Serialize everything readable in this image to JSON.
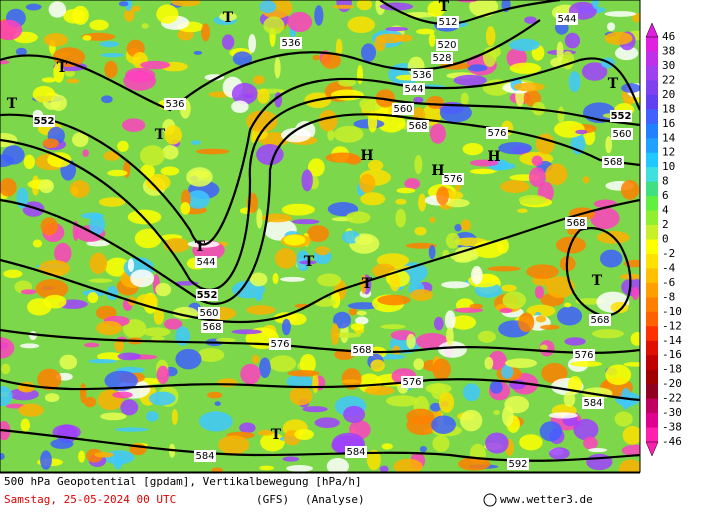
{
  "map": {
    "contour_labels": [
      512,
      544,
      520,
      536,
      528,
      536,
      544,
      536,
      552,
      552,
      560,
      560,
      568,
      576,
      568,
      576,
      544,
      552,
      560,
      568,
      568,
      568,
      576,
      568,
      576,
      576,
      584,
      584,
      584,
      592
    ],
    "pressure_centers": [
      "T",
      "T",
      "T",
      "T",
      "T",
      "T",
      "T",
      "T",
      "T",
      "T",
      "T",
      "H",
      "H",
      "H"
    ]
  },
  "colorbar": {
    "labels": [
      46,
      38,
      30,
      22,
      20,
      18,
      16,
      14,
      12,
      10,
      8,
      6,
      4,
      2,
      0,
      -2,
      -4,
      -6,
      -8,
      -10,
      -12,
      -14,
      -16,
      -18,
      -20,
      -22,
      -30,
      -38,
      -46
    ]
  },
  "footer": {
    "title": "500 hPa Geopotential [gpdam], Vertikalbewegung [hPa/h]",
    "date": "Samstag, 25-05-2024  00 UTC",
    "model": "(GFS)",
    "run": "(Analyse)",
    "credit": "www.wetter3.de"
  }
}
